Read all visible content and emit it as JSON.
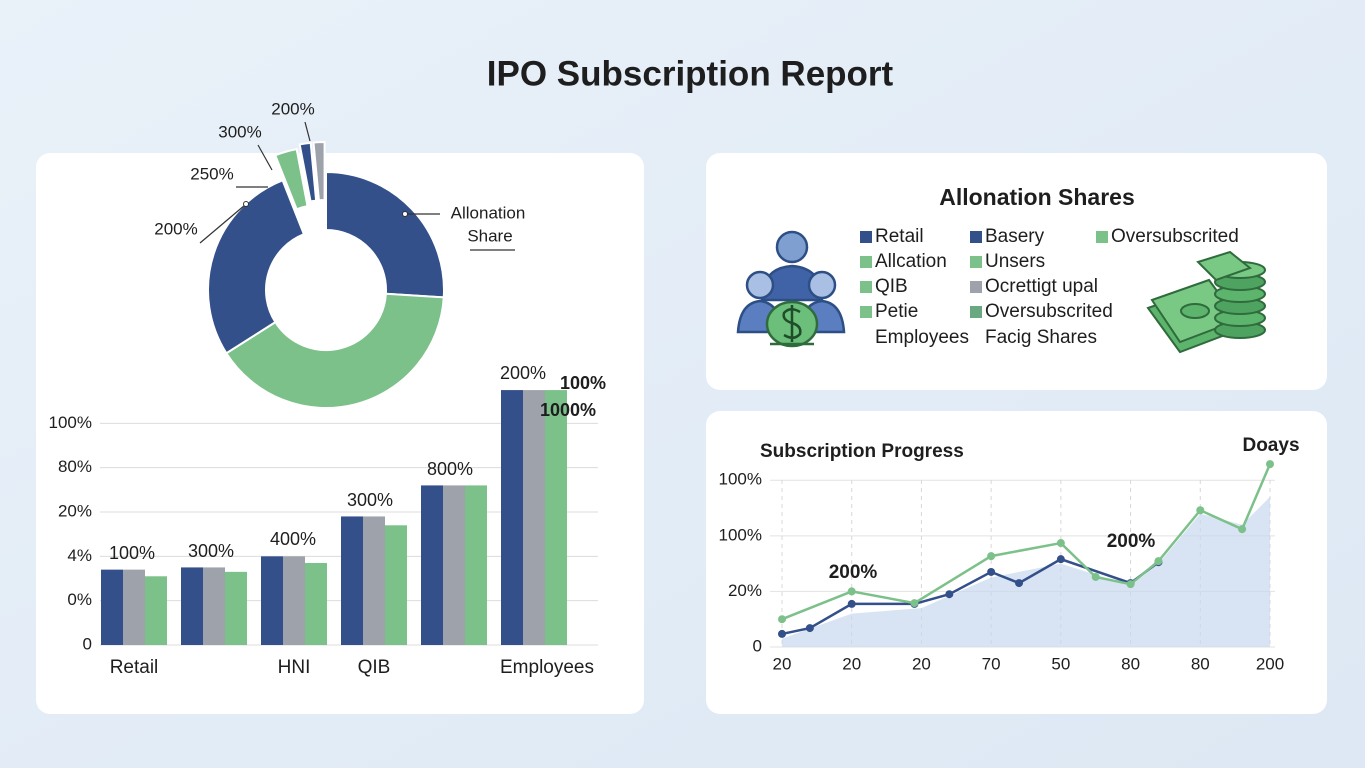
{
  "title": "IPO Subscription Report",
  "chart_data": [
    {
      "type": "donut",
      "values": [
        26,
        40,
        28,
        3,
        1.5,
        1.5
      ],
      "colors": [
        "#34508a",
        "#7cc08a",
        "#34508a",
        "#7cc08a",
        "#34508a",
        "#9ea3ab"
      ],
      "annotations": [
        "200%",
        "300%",
        "250%",
        "200%",
        "Allonation",
        "Share"
      ]
    },
    {
      "type": "bar",
      "categories": [
        "Retail",
        null,
        "HNI",
        "QIB",
        null,
        "Employees"
      ],
      "series": [
        {
          "color": "#34508a",
          "values": [
            34,
            35,
            40,
            58,
            72,
            115
          ]
        },
        {
          "color": "#9ea3ab",
          "values": [
            34,
            35,
            40,
            58,
            72,
            115
          ]
        },
        {
          "color": "#7cc08a",
          "values": [
            31,
            33,
            37,
            54,
            72,
            115
          ]
        }
      ],
      "ylim": [
        0,
        120
      ],
      "yticks": [
        0,
        {
          "value": 20,
          "label": "0%"
        },
        {
          "value": 40,
          "label": "4%"
        },
        {
          "value": 60,
          "label": "20%"
        },
        {
          "value": 80,
          "label": "80%"
        },
        {
          "value": 100,
          "label": "100%"
        }
      ],
      "grid": true,
      "annotations": [
        "100%",
        "300%",
        "400%",
        "300%",
        "800%",
        "200%",
        "100%",
        "1000%"
      ]
    },
    {
      "type": "line",
      "title": "Subscription Progress",
      "annotations": [
        "200%",
        "200%",
        "Doays"
      ],
      "series": [
        {
          "type": "area",
          "color": "#c8d8ee",
          "x": [
            0,
            1,
            2,
            3,
            4,
            5,
            5.4,
            6,
            6.6,
            7
          ],
          "values": [
            3,
            12,
            14,
            25,
            30,
            22,
            30,
            48,
            44,
            54
          ]
        },
        {
          "type": "line",
          "color": "#34508a",
          "x": [
            0,
            0.4,
            1,
            1.9,
            2.4,
            3,
            3.4,
            4,
            5,
            5.4
          ],
          "values": [
            4.7,
            6.8,
            15.5,
            15.5,
            19,
            27,
            23,
            31.6,
            23,
            30.5
          ]
        },
        {
          "type": "line",
          "color": "#7cc08a",
          "x": [
            0,
            1,
            1.9,
            3,
            4,
            4.5,
            5,
            5.4,
            6,
            6.6,
            7
          ],
          "values": [
            10,
            20,
            15.8,
            32.7,
            37.4,
            25.2,
            22.6,
            30.9,
            49.2,
            42.4,
            65.8
          ]
        }
      ],
      "xlim": [
        0,
        7
      ],
      "xticks": [
        {
          "value": 0,
          "label": "20"
        },
        {
          "value": 1,
          "label": "20"
        },
        {
          "value": 2,
          "label": "20"
        },
        {
          "value": 3,
          "label": "70"
        },
        {
          "value": 4,
          "label": "50"
        },
        {
          "value": 5,
          "label": "80"
        },
        {
          "value": 6,
          "label": "80"
        },
        {
          "value": 7,
          "label": "200"
        }
      ],
      "ylim": [
        0,
        68
      ],
      "yticks": [
        0,
        {
          "value": 20,
          "label": "20%"
        },
        {
          "value": 40,
          "label": "100%"
        },
        {
          "value": 60,
          "label": "100%"
        }
      ],
      "grid": true
    }
  ],
  "legend_panel": {
    "title": "Allonation Shares",
    "columns": [
      [
        {
          "name": "Retail",
          "color": "#34508a"
        },
        {
          "name": "Allcation",
          "color": "#7cc08a"
        },
        {
          "name": "QIB",
          "color": "#7cc08a"
        },
        {
          "name": "Petie",
          "color": "#7cc08a"
        },
        {
          "name": "Employees"
        }
      ],
      [
        {
          "name": "Basery",
          "color": "#34508a"
        },
        {
          "name": "Unsers",
          "color": "#7cc08a"
        },
        {
          "name": "Ocrettigt upal",
          "color": "#9ea3ab"
        },
        {
          "name": "Oversubscrited",
          "color": "#6aa882"
        },
        {
          "name": "Facig Shares"
        }
      ],
      [
        {
          "name": "Oversubscrited",
          "color": "#7cc08a"
        }
      ]
    ]
  }
}
